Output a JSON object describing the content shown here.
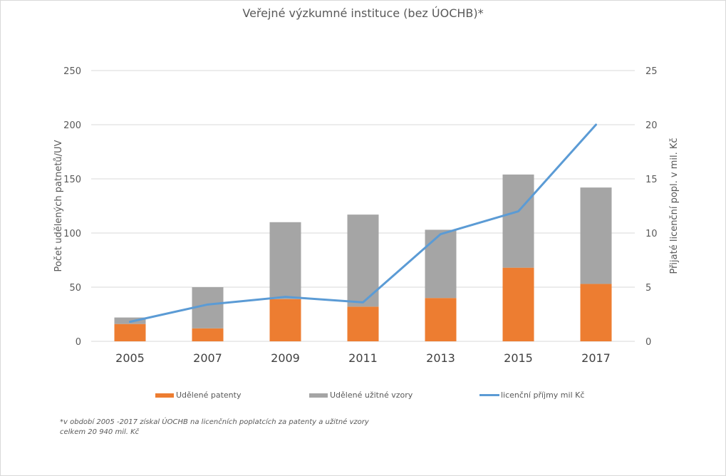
{
  "chart_data": {
    "type": "bar",
    "subtype": "stacked-bar-with-line-secondary-axis",
    "title": "Veřejné výzkumné instituce (bez ÚOCHB)*",
    "categories": [
      "2005",
      "2007",
      "2009",
      "2011",
      "2013",
      "2015",
      "2017"
    ],
    "series": [
      {
        "name": "Udělené patenty",
        "type": "bar",
        "axis": "left",
        "color": "#ed7d31",
        "values": [
          16,
          12,
          39,
          32,
          40,
          68,
          53
        ]
      },
      {
        "name": "Udělené užitné vzory",
        "type": "bar",
        "axis": "left",
        "color": "#a5a5a5",
        "values": [
          6,
          38,
          71,
          85,
          63,
          86,
          89
        ]
      },
      {
        "name": "licenční příjmy mil Kč",
        "type": "line",
        "axis": "right",
        "color": "#5b9bd5",
        "values": [
          1.8,
          3.4,
          4.1,
          3.6,
          9.9,
          12.0,
          20.0
        ]
      }
    ],
    "ylabel": "Počet udělených patnetů/UV",
    "y2label": "Přijaté licenční popl. v mil. Kč",
    "xlabel": "",
    "ylim": [
      0,
      250
    ],
    "y2lim": [
      0,
      25
    ],
    "yticks": [
      "0",
      "50",
      "100",
      "150",
      "200",
      "250"
    ],
    "y2ticks": [
      "0",
      "5",
      "10",
      "15",
      "20",
      "25"
    ],
    "grid": true,
    "legend_position": "bottom"
  },
  "legend": {
    "patents": "Udělené patenty",
    "utility_models": "Udělené užitné vzory",
    "license_income": "licenční příjmy mil Kč"
  },
  "note": {
    "line1": "*v období 2005 -2017 získal ÚOCHB na licenčních poplatcích za patenty a užitné vzory",
    "line2": "celkem 20 940 mil. Kč"
  }
}
